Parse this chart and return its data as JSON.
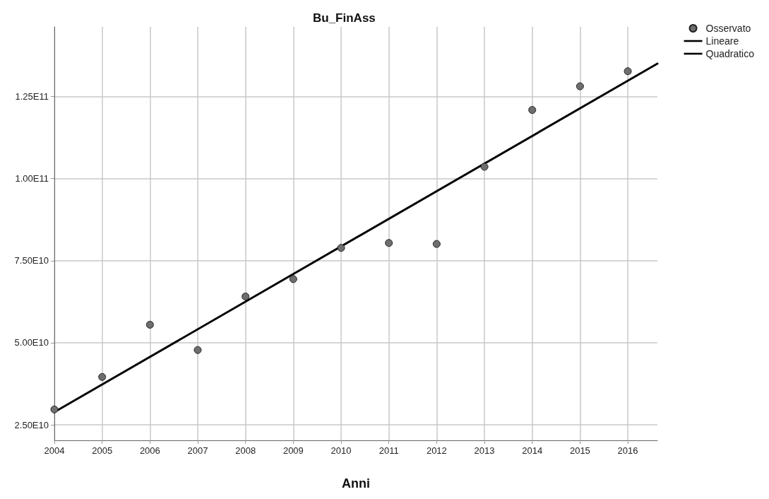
{
  "chart_data": {
    "type": "scatter",
    "title": "Bu_FinAss",
    "xlabel": "Anni",
    "x": [
      2004,
      2005,
      2006,
      2007,
      2008,
      2009,
      2010,
      2011,
      2012,
      2013,
      2014,
      2015,
      2016
    ],
    "series": [
      {
        "name": "Osservato",
        "color": "#6e6e6e",
        "marker": "circle",
        "values": [
          29700000000.0,
          39600000000.0,
          55500000000.0,
          47800000000.0,
          64100000000.0,
          69400000000.0,
          78900000000.0,
          80400000000.0,
          80100000000.0,
          103600000000.0,
          120900000000.0,
          128100000000.0,
          132700000000.0
        ]
      },
      {
        "name": "Lineare",
        "type": "line",
        "color": "#000000",
        "marker": "none",
        "line_style": "solid",
        "x": [
          2004,
          2016.62
        ],
        "values": [
          28900000000.0,
          135000000000.0
        ]
      },
      {
        "name": "Quadratico",
        "type": "line",
        "color": "#000000",
        "marker": "none",
        "line_style": "dashed",
        "values": [
          null,
          null,
          null,
          null,
          null,
          null,
          null,
          null,
          null,
          null,
          null,
          null,
          null
        ]
      }
    ],
    "xlim": [
      2004,
      2016.62
    ],
    "xticks": [
      2004,
      2005,
      2006,
      2007,
      2008,
      2009,
      2010,
      2011,
      2012,
      2013,
      2014,
      2015,
      2016
    ],
    "ylim": [
      20300000000.0,
      146200000000.0
    ],
    "yticks": [
      {
        "value": 25000000000.0,
        "label": "2.50E10"
      },
      {
        "value": 50000000000.0,
        "label": "5.00E10"
      },
      {
        "value": 75000000000.0,
        "label": "7.50E10"
      },
      {
        "value": 100000000000.0,
        "label": "1.00E11"
      },
      {
        "value": 125000000000.0,
        "label": "1.25E11"
      }
    ],
    "grid": true,
    "legend": "top right"
  }
}
